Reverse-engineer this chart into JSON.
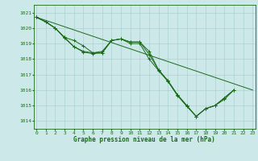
{
  "title": "Graphe pression niveau de la mer (hPa)",
  "bg_color": "#cce8e8",
  "line_color": "#1a6b1a",
  "grid_color": "#a8cccc",
  "ylim": [
    1013.5,
    1021.5
  ],
  "xlim": [
    -0.3,
    23.3
  ],
  "yticks": [
    1014,
    1015,
    1016,
    1017,
    1018,
    1019,
    1020,
    1021
  ],
  "xticks": [
    0,
    1,
    2,
    3,
    4,
    5,
    6,
    7,
    8,
    9,
    10,
    11,
    12,
    13,
    14,
    15,
    16,
    17,
    18,
    19,
    20,
    21,
    22,
    23
  ],
  "straight_line_x": [
    0,
    23
  ],
  "straight_line_y": [
    1020.7,
    1016.0
  ],
  "series": [
    [
      1020.7,
      1020.4,
      1020.0,
      1019.4,
      1019.2,
      1018.85,
      1018.4,
      1018.5,
      1019.2,
      1019.3,
      1019.1,
      1019.1,
      1018.5,
      1017.3,
      1016.6,
      1015.7,
      1015.0,
      1014.3,
      1014.8,
      1015.0,
      1015.5,
      1016.0,
      null,
      null
    ],
    [
      1020.7,
      1020.4,
      1020.0,
      1019.4,
      1018.8,
      1018.5,
      1018.4,
      1018.4,
      1019.2,
      1019.3,
      1019.1,
      1019.1,
      1018.3,
      1017.3,
      1016.6,
      1015.7,
      1015.0,
      1014.3,
      1014.8,
      1015.0,
      1015.5,
      1016.0,
      null,
      null
    ],
    [
      1020.7,
      1020.4,
      1020.0,
      1019.35,
      1018.8,
      1018.45,
      1018.35,
      1018.4,
      1019.2,
      1019.3,
      1019.0,
      1019.0,
      1018.0,
      1017.25,
      1016.55,
      1015.65,
      1014.95,
      1014.3,
      1014.8,
      1015.0,
      1015.4,
      1016.0,
      null,
      null
    ]
  ],
  "title_fontsize": 5.5,
  "tick_fontsize": 4.5,
  "linewidth": 0.7,
  "markersize": 2.5
}
